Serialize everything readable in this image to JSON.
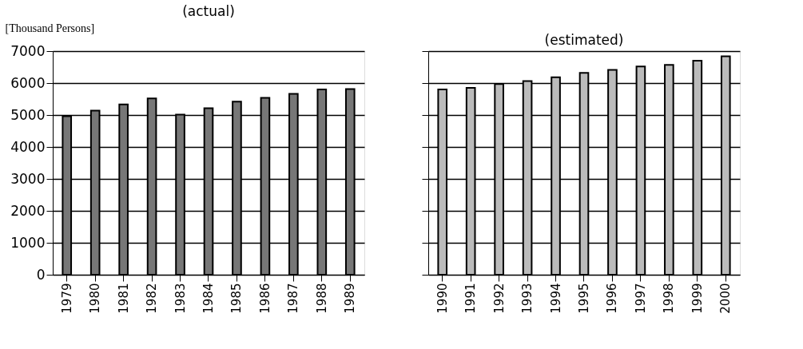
{
  "chart_data": [
    {
      "type": "bar",
      "title": "(actual)",
      "ylabel": "[Thousand Persons]",
      "categories": [
        "1979",
        "1980",
        "1981",
        "1982",
        "1983",
        "1984",
        "1985",
        "1986",
        "1987",
        "1988",
        "1989"
      ],
      "values": [
        4960,
        5140,
        5330,
        5520,
        5010,
        5210,
        5420,
        5540,
        5660,
        5800,
        5810
      ],
      "color": "#777777",
      "ylim": [
        0,
        7000
      ],
      "yticks": [
        0,
        1000,
        2000,
        3000,
        4000,
        5000,
        6000,
        7000
      ],
      "grid": "y"
    },
    {
      "type": "bar",
      "title": "(estimated)",
      "categories": [
        "1990",
        "1991",
        "1992",
        "1993",
        "1994",
        "1995",
        "1996",
        "1997",
        "1998",
        "1999",
        "2000"
      ],
      "values": [
        5800,
        5850,
        5970,
        6060,
        6180,
        6320,
        6410,
        6520,
        6570,
        6700,
        6840
      ],
      "color": "#bbbbbb",
      "ylim": [
        0,
        7000
      ],
      "yticks": [
        0,
        1000,
        2000,
        3000,
        4000,
        5000,
        6000,
        7000
      ],
      "grid": "y",
      "tick_labels": "x"
    }
  ]
}
